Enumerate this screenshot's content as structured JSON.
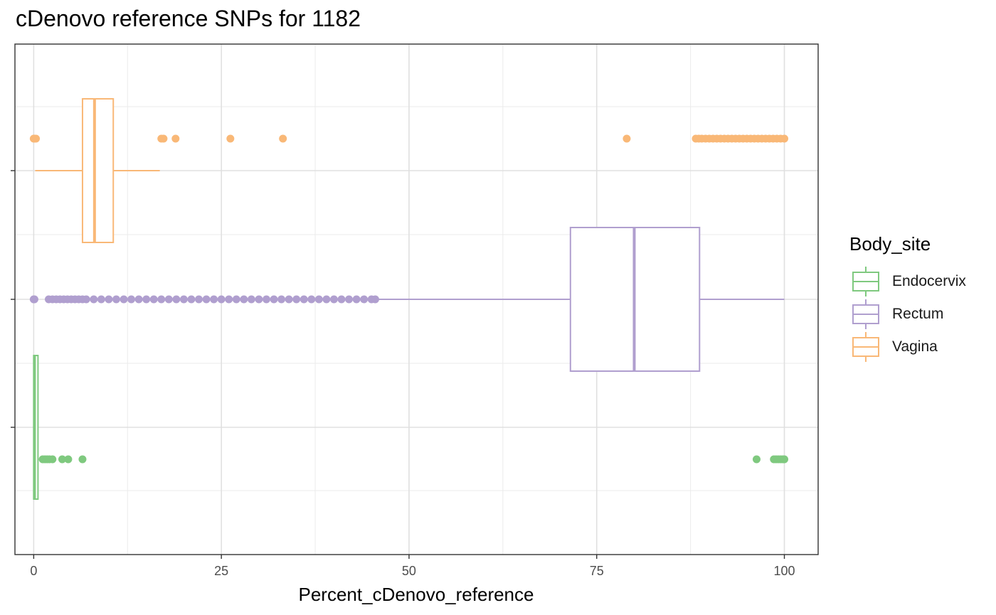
{
  "chart_data": {
    "type": "boxplot",
    "title": "cDenovo reference SNPs for 1182",
    "xlabel": "Percent_cDenovo_reference",
    "ylabel": "",
    "xlim": [
      -2.5,
      104.5
    ],
    "xticks": [
      0,
      25,
      50,
      75,
      100
    ],
    "grid": true,
    "legend": {
      "title": "Body_site",
      "position": "right",
      "entries": [
        "Endocervix",
        "Rectum",
        "Vagina"
      ]
    },
    "series": [
      {
        "name": "Endocervix",
        "color": "#7fc97f",
        "min": 0,
        "q1": 0,
        "median": 0.1,
        "q3": 0.4,
        "max": 0.5,
        "outliers": [
          1.2,
          1.5,
          1.8,
          2.1,
          2.5,
          3.8,
          4.6,
          6.5,
          96.3,
          98.6,
          98.9,
          99.2,
          99.5,
          99.8,
          100
        ]
      },
      {
        "name": "Rectum",
        "color": "#b09fcf",
        "min": 45.8,
        "q1": 71.5,
        "median": 80.0,
        "q3": 88.7,
        "max": 100,
        "outliers": [
          0,
          0.1,
          2.0,
          2.5,
          3.0,
          3.5,
          4.0,
          4.5,
          5.0,
          5.5,
          6.0,
          6.5,
          7.0,
          8.0,
          9.0,
          10.0,
          11.0,
          12.0,
          13.0,
          14.0,
          15.0,
          16.0,
          17.0,
          18.0,
          19.0,
          20.0,
          21.0,
          22.0,
          23.0,
          24.0,
          25.0,
          26.0,
          27.0,
          28.0,
          29.0,
          30.0,
          31.0,
          32.0,
          33.0,
          34.0,
          35.0,
          36.0,
          37.0,
          38.0,
          39.0,
          40.0,
          41.0,
          42.0,
          43.0,
          44.0,
          45.0,
          45.5
        ]
      },
      {
        "name": "Vagina",
        "color": "#f9b877",
        "min": 0.2,
        "q1": 6.5,
        "median": 8.1,
        "q3": 10.6,
        "max": 16.8,
        "outliers": [
          0,
          0.1,
          0.3,
          17.0,
          17.3,
          18.9,
          26.2,
          33.2,
          79.0,
          88.2,
          88.6,
          89.0,
          89.5,
          90.0,
          90.5,
          91.0,
          91.5,
          92.0,
          92.5,
          93.0,
          93.5,
          94.0,
          94.5,
          95.0,
          95.5,
          96.0,
          96.5,
          97.0,
          97.5,
          98.0,
          98.5,
          99.0,
          99.5,
          100
        ]
      }
    ]
  }
}
